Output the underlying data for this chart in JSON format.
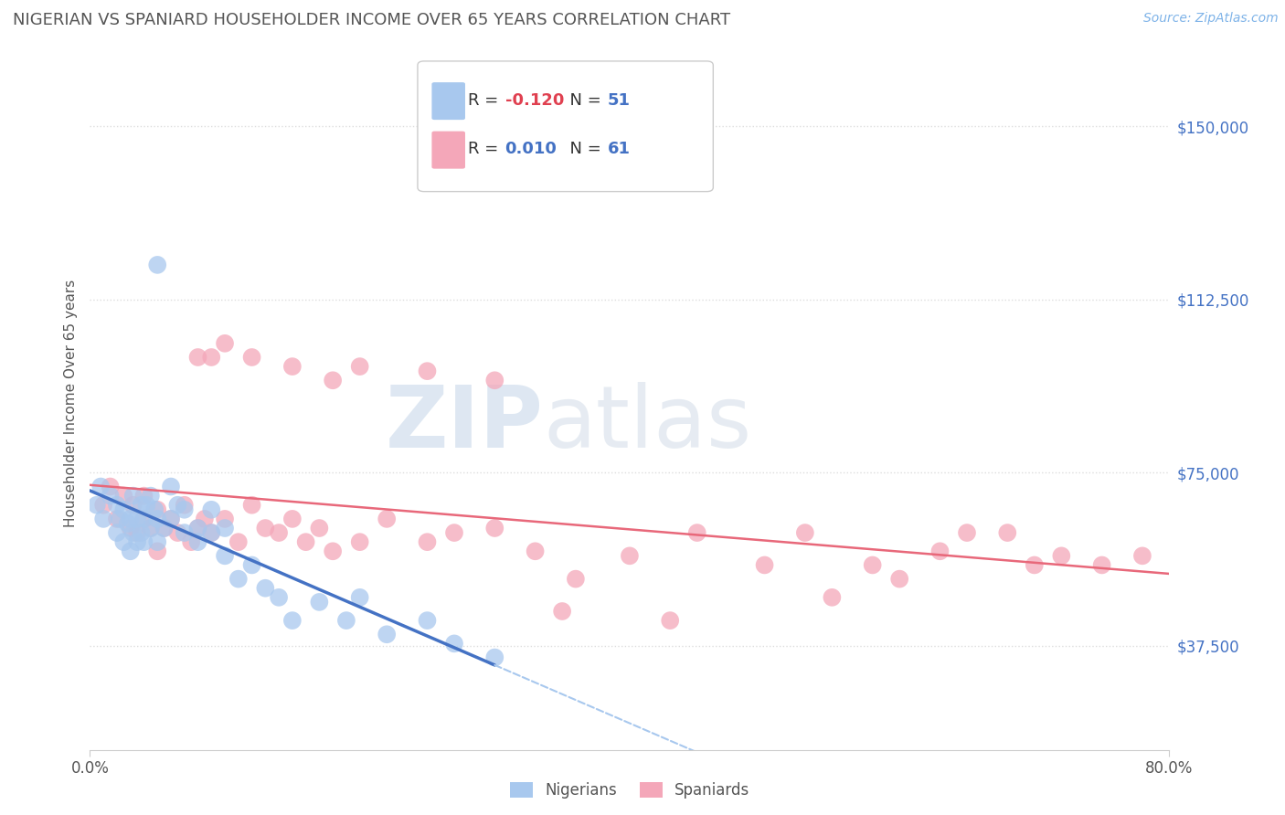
{
  "title": "NIGERIAN VS SPANIARD HOUSEHOLDER INCOME OVER 65 YEARS CORRELATION CHART",
  "source": "Source: ZipAtlas.com",
  "ylabel": "Householder Income Over 65 years",
  "yticks": [
    37500,
    75000,
    112500,
    150000
  ],
  "ytick_labels": [
    "$37,500",
    "$75,000",
    "$112,500",
    "$150,000"
  ],
  "xmin": 0.0,
  "xmax": 0.8,
  "ymin": 15000,
  "ymax": 165000,
  "nigerian_R": -0.12,
  "nigerian_N": 51,
  "spaniard_R": 0.01,
  "spaniard_N": 61,
  "nigerian_color": "#A8C8EE",
  "spaniard_color": "#F4A7B9",
  "nigerian_line_color": "#4472C4",
  "spaniard_line_color": "#E8687A",
  "nigerian_dash_color": "#A8C8EE",
  "watermark_zip": "ZIP",
  "watermark_atlas": "atlas",
  "background_color": "#FFFFFF",
  "grid_color": "#DDDDDD",
  "title_color": "#555555",
  "tick_color": "#4472C4",
  "nigerian_x": [
    0.005,
    0.008,
    0.01,
    0.015,
    0.02,
    0.02,
    0.022,
    0.025,
    0.025,
    0.028,
    0.03,
    0.03,
    0.032,
    0.032,
    0.035,
    0.035,
    0.038,
    0.038,
    0.04,
    0.04,
    0.042,
    0.045,
    0.045,
    0.048,
    0.05,
    0.05,
    0.055,
    0.06,
    0.06,
    0.065,
    0.07,
    0.07,
    0.08,
    0.08,
    0.09,
    0.09,
    0.1,
    0.1,
    0.11,
    0.12,
    0.13,
    0.14,
    0.15,
    0.17,
    0.19,
    0.2,
    0.22,
    0.25,
    0.27,
    0.3,
    0.05
  ],
  "nigerian_y": [
    68000,
    72000,
    65000,
    70000,
    62000,
    68000,
    65000,
    60000,
    67000,
    64000,
    58000,
    65000,
    62000,
    70000,
    60000,
    65000,
    62000,
    68000,
    60000,
    65000,
    68000,
    63000,
    70000,
    67000,
    60000,
    65000,
    63000,
    65000,
    72000,
    68000,
    62000,
    67000,
    63000,
    60000,
    62000,
    67000,
    63000,
    57000,
    52000,
    55000,
    50000,
    48000,
    43000,
    47000,
    43000,
    48000,
    40000,
    43000,
    38000,
    35000,
    120000
  ],
  "spaniard_x": [
    0.01,
    0.015,
    0.02,
    0.025,
    0.03,
    0.032,
    0.035,
    0.04,
    0.04,
    0.045,
    0.05,
    0.05,
    0.055,
    0.06,
    0.065,
    0.07,
    0.075,
    0.08,
    0.085,
    0.09,
    0.1,
    0.11,
    0.12,
    0.13,
    0.14,
    0.15,
    0.16,
    0.17,
    0.18,
    0.2,
    0.22,
    0.25,
    0.27,
    0.3,
    0.33,
    0.36,
    0.4,
    0.43,
    0.45,
    0.5,
    0.53,
    0.55,
    0.58,
    0.6,
    0.63,
    0.65,
    0.68,
    0.7,
    0.72,
    0.75,
    0.78,
    0.08,
    0.09,
    0.1,
    0.12,
    0.15,
    0.18,
    0.2,
    0.25,
    0.3,
    0.35
  ],
  "spaniard_y": [
    68000,
    72000,
    65000,
    70000,
    63000,
    68000,
    62000,
    65000,
    70000,
    63000,
    67000,
    58000,
    63000,
    65000,
    62000,
    68000,
    60000,
    63000,
    65000,
    62000,
    65000,
    60000,
    68000,
    63000,
    62000,
    65000,
    60000,
    63000,
    58000,
    60000,
    65000,
    60000,
    62000,
    63000,
    58000,
    52000,
    57000,
    43000,
    62000,
    55000,
    62000,
    48000,
    55000,
    52000,
    58000,
    62000,
    62000,
    55000,
    57000,
    55000,
    57000,
    100000,
    100000,
    103000,
    100000,
    98000,
    95000,
    98000,
    97000,
    95000,
    45000
  ]
}
